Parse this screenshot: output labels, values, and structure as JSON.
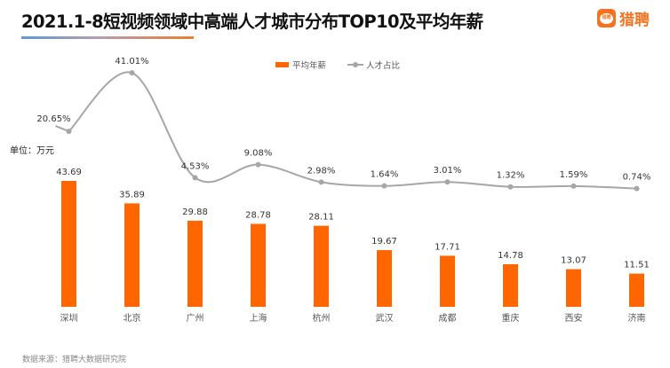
{
  "header": {
    "title": "2021.1-8短视频领域中高端人才城市分布TOP10及平均年薪",
    "logo_text": "猎聘",
    "logo_badge_text": "猎聘"
  },
  "unit_label": "单位：万元",
  "source": "数据来源：猎聘大数据研究院",
  "colors": {
    "bar": "#ff6600",
    "line": "#a6a6a6",
    "brand": "#f5721f"
  },
  "chart_data": {
    "type": "bar+line",
    "title": "2021.1-8短视频领域中高端人才城市分布TOP10及平均年薪",
    "categories": [
      "深圳",
      "北京",
      "广州",
      "上海",
      "杭州",
      "武汉",
      "成都",
      "重庆",
      "西安",
      "济南"
    ],
    "series": [
      {
        "name": "平均年薪",
        "type": "bar",
        "unit": "万元",
        "values": [
          43.69,
          35.89,
          29.88,
          28.78,
          28.11,
          19.67,
          17.71,
          14.78,
          13.07,
          11.51
        ],
        "labels": [
          "43.69",
          "35.89",
          "29.88",
          "28.78",
          "28.11",
          "19.67",
          "17.71",
          "14.78",
          "13.07",
          "11.51"
        ]
      },
      {
        "name": "人才占比",
        "type": "line",
        "unit": "%",
        "smooth": true,
        "values": [
          20.65,
          41.01,
          4.53,
          9.08,
          2.98,
          1.64,
          3.01,
          1.32,
          1.59,
          0.74
        ],
        "labels": [
          "20.65%",
          "41.01%",
          "4.53%",
          "9.08%",
          "2.98%",
          "1.64%",
          "3.01%",
          "1.32%",
          "1.59%",
          "0.74%"
        ]
      }
    ],
    "legend": [
      "平均年薪",
      "人才占比"
    ],
    "legend_position": "top-center",
    "grid": false
  }
}
